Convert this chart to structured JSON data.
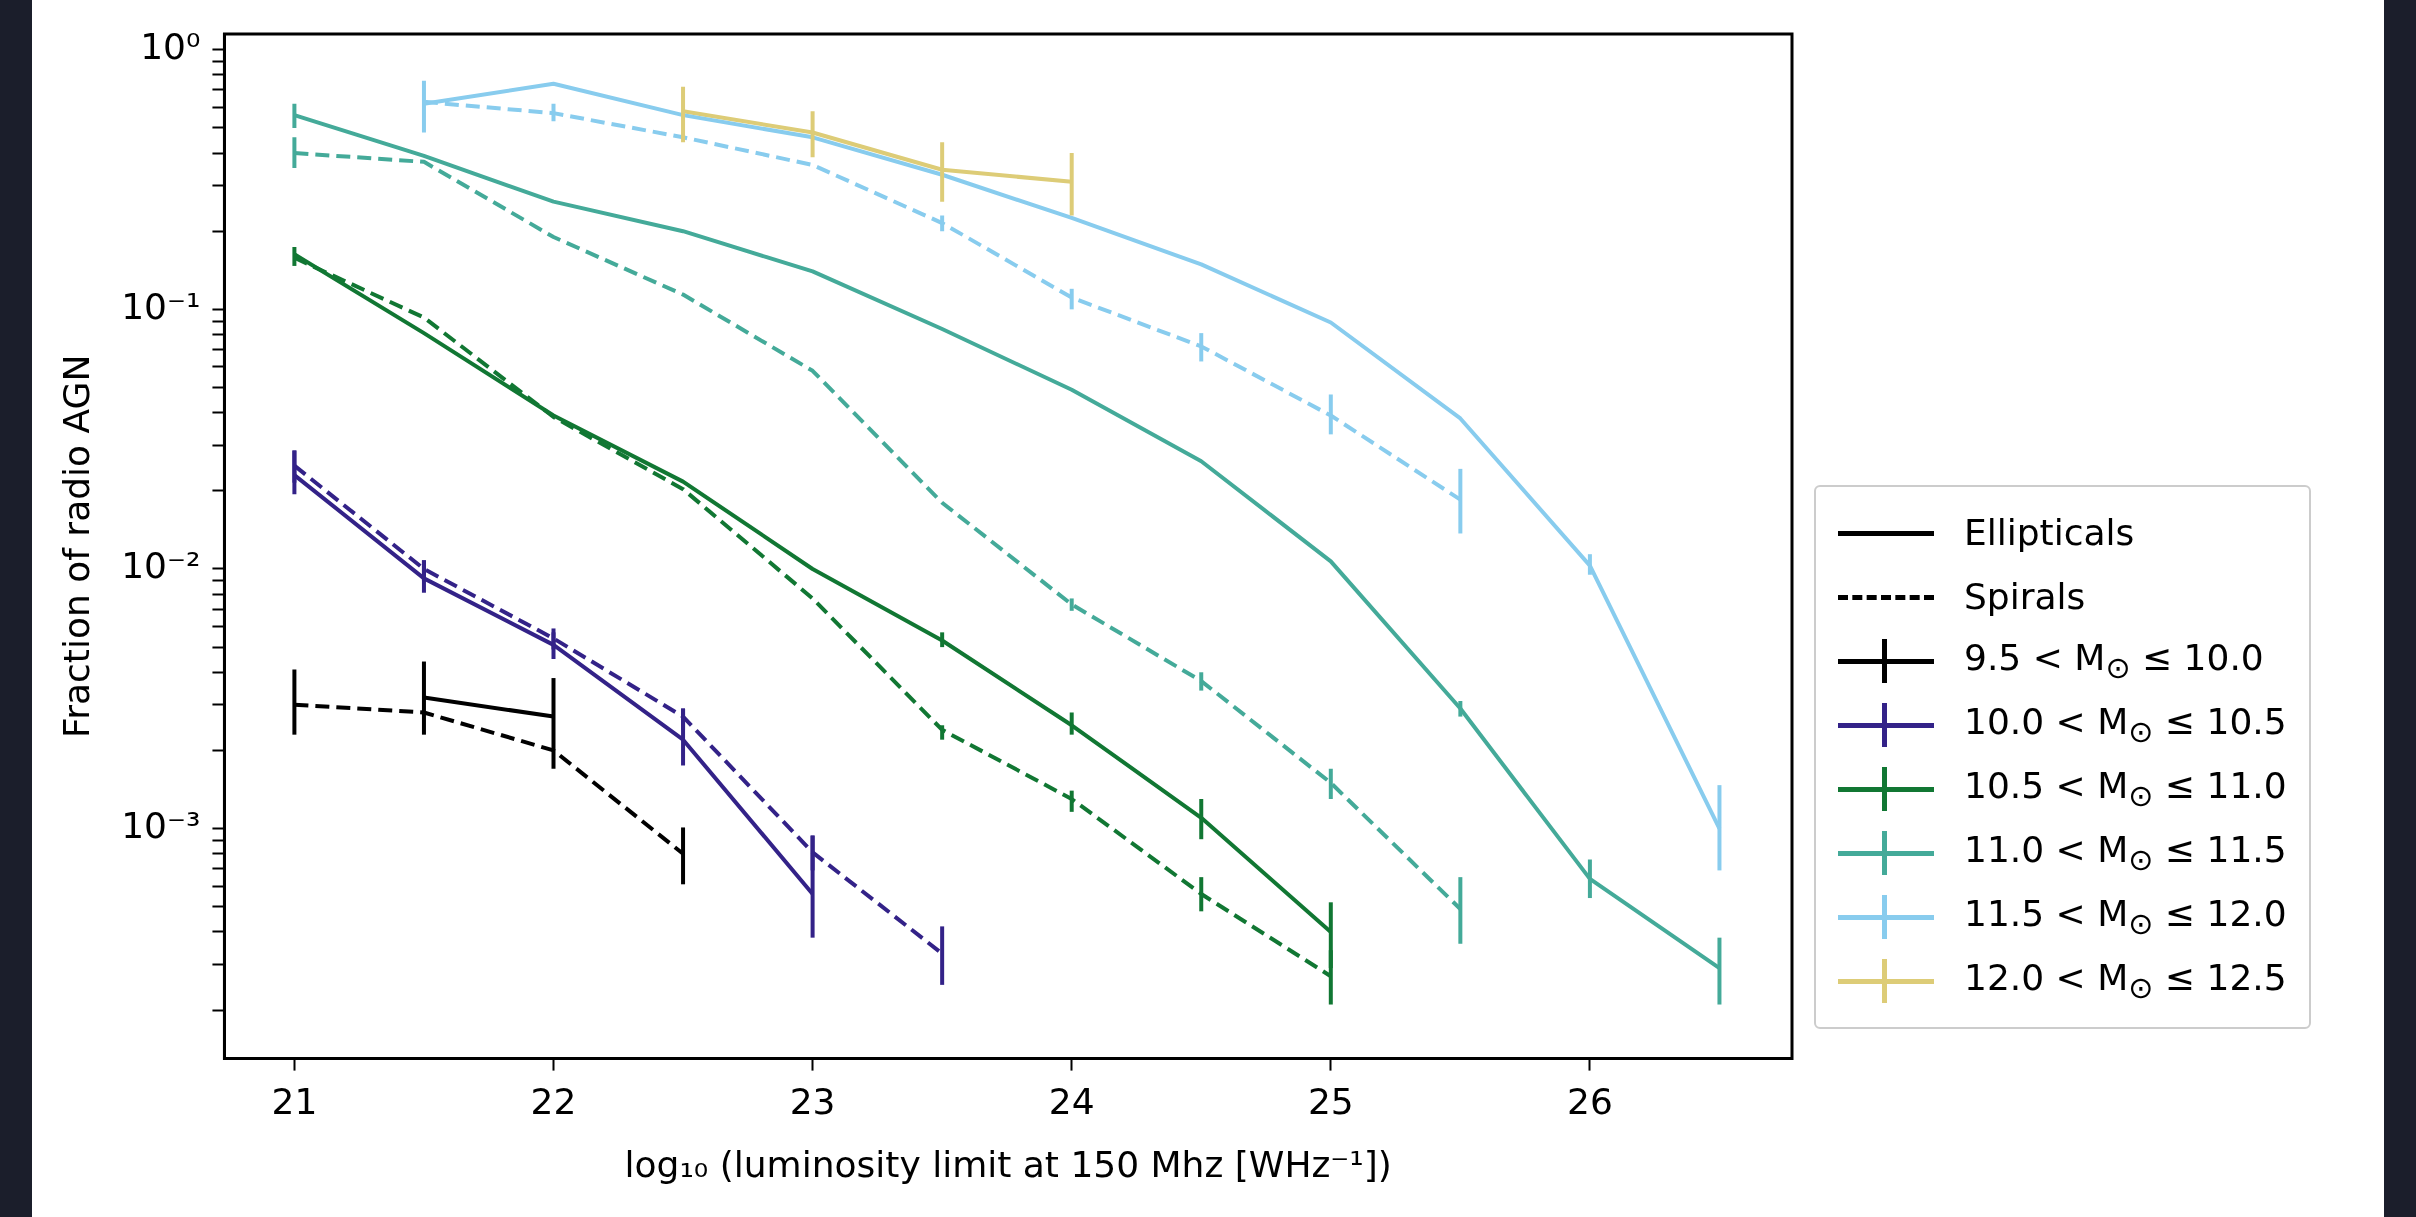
{
  "chart_data": {
    "type": "line",
    "xlabel": "log₁₀ (luminosity limit at 150 Mhz [WHz⁻¹])",
    "ylabel": "Fraction of radio AGN",
    "log": "y",
    "legend": "right",
    "xlim": [
      20.73,
      26.78
    ],
    "ylim": [
      0.00013,
      1.15
    ],
    "xticks": [
      21,
      22,
      23,
      24,
      25,
      26
    ],
    "yticks": [
      {
        "value": 0.001,
        "label": "10⁻³"
      },
      {
        "value": 0.01,
        "label": "10⁻²"
      },
      {
        "value": 0.1,
        "label": "10⁻¹"
      },
      {
        "value": 1,
        "label": "10⁰"
      },
      {
        "value": 0.0002,
        "label": null
      },
      {
        "value": 0.0003,
        "label": null
      },
      {
        "value": 0.0004,
        "label": null
      },
      {
        "value": 0.0005,
        "label": null
      },
      {
        "value": 0.0006,
        "label": null
      },
      {
        "value": 0.0007,
        "label": null
      },
      {
        "value": 0.0008,
        "label": null
      },
      {
        "value": 0.0009,
        "label": null
      },
      {
        "value": 0.002,
        "label": null
      },
      {
        "value": 0.003,
        "label": null
      },
      {
        "value": 0.004,
        "label": null
      },
      {
        "value": 0.005,
        "label": null
      },
      {
        "value": 0.006,
        "label": null
      },
      {
        "value": 0.007,
        "label": null
      },
      {
        "value": 0.008,
        "label": null
      },
      {
        "value": 0.009,
        "label": null
      },
      {
        "value": 0.02,
        "label": null
      },
      {
        "value": 0.03,
        "label": null
      },
      {
        "value": 0.04,
        "label": null
      },
      {
        "value": 0.05,
        "label": null
      },
      {
        "value": 0.06,
        "label": null
      },
      {
        "value": 0.07,
        "label": null
      },
      {
        "value": 0.08,
        "label": null
      },
      {
        "value": 0.09,
        "label": null
      },
      {
        "value": 0.2,
        "label": null
      },
      {
        "value": 0.3,
        "label": null
      },
      {
        "value": 0.4,
        "label": null
      },
      {
        "value": 0.5,
        "label": null
      },
      {
        "value": 0.6,
        "label": null
      },
      {
        "value": 0.7,
        "label": null
      },
      {
        "value": 0.8,
        "label": null
      },
      {
        "value": 0.9,
        "label": null
      }
    ],
    "series": [
      {
        "name": "Ellipticals",
        "color": "#000000",
        "line_style": "solid"
      },
      {
        "name": "Spirals",
        "color": "#000000",
        "line_style": "dashed"
      },
      {
        "name": "9.5 < M$_{⊙}$ ≤ 10.0",
        "color": "#000000",
        "line_style": "solid",
        "x": [
          21.5,
          22
        ],
        "values": [
          0.0032,
          0.0027
        ],
        "errors": [
          [
            0.0023,
            0.0044
          ],
          [
            0.0017,
            0.0038
          ]
        ]
      },
      {
        "color": "#000000",
        "line_style": "dashed",
        "x": [
          21,
          21.5,
          22,
          22.5
        ],
        "values": [
          0.003,
          0.0028,
          0.002,
          0.0008
        ],
        "errors": [
          [
            0.0023,
            0.0041
          ],
          null,
          null,
          [
            0.00061,
            0.00101
          ]
        ]
      },
      {
        "name": "10.0 < M$_{⊙}$ ≤ 10.5",
        "color": "#332288",
        "line_style": "solid",
        "x": [
          21,
          21.5,
          22,
          22.5,
          23
        ],
        "values": [
          0.023,
          0.0092,
          0.0051,
          0.0022,
          0.00056
        ],
        "errors": [
          [
            0.0194,
            0.0286
          ],
          [
            0.0081,
            0.0108
          ],
          [
            0.0045,
            0.0057
          ],
          [
            0.00175,
            0.0029
          ],
          [
            0.00038,
            0.00094
          ]
        ]
      },
      {
        "color": "#332288",
        "line_style": "dashed",
        "x": [
          21,
          21.5,
          22,
          22.5,
          23,
          23.5
        ],
        "values": [
          0.025,
          0.01,
          0.0054,
          0.0027,
          0.00081,
          0.00033
        ],
        "errors": [
          [
            0.0215,
            0.0286
          ],
          [
            0.009,
            0.0108
          ],
          [
            0.0049,
            0.0059
          ],
          [
            0.0024,
            0.0029
          ],
          [
            0.00069,
            0.00094
          ],
          [
            0.00025,
            0.00042
          ]
        ]
      },
      {
        "name": "10.5 < M$_{⊙}$ ≤ 11.0",
        "color": "#117733",
        "line_style": "solid",
        "x": [
          21,
          21.5,
          22,
          22.5,
          23,
          23.5,
          24,
          24.5,
          25
        ],
        "values": [
          0.163,
          0.081,
          0.039,
          0.0217,
          0.01,
          0.0053,
          0.0025,
          0.0011,
          0.0004
        ],
        "errors": [
          [
            0.147,
            0.174
          ],
          null,
          null,
          null,
          null,
          [
            0.005,
            0.0057
          ],
          [
            0.0023,
            0.0028
          ],
          [
            0.00091,
            0.0013
          ],
          [
            0.00029,
            0.00052
          ]
        ]
      },
      {
        "color": "#117733",
        "line_style": "dashed",
        "x": [
          21,
          21.5,
          22,
          22.5,
          23,
          23.5,
          24,
          24.5,
          25
        ],
        "values": [
          0.158,
          0.093,
          0.0385,
          0.0203,
          0.0077,
          0.0024,
          0.0013,
          0.00056,
          0.00027
        ],
        "errors": [
          null,
          null,
          null,
          null,
          null,
          [
            0.0022,
            0.0025
          ],
          [
            0.00116,
            0.0014
          ],
          [
            0.00048,
            0.00065
          ],
          [
            0.00021,
            0.00034
          ]
        ]
      },
      {
        "name": "11.0 < M$_{⊙}$ ≤ 11.5",
        "color": "#44aa99",
        "line_style": "solid",
        "x": [
          21,
          21.5,
          22,
          22.5,
          23,
          23.5,
          24,
          24.5,
          25,
          25.5,
          26,
          26.5
        ],
        "values": [
          0.56,
          0.39,
          0.26,
          0.2,
          0.14,
          0.084,
          0.049,
          0.026,
          0.0107,
          0.0029,
          0.00064,
          0.00029
        ],
        "errors": [
          [
            0.5,
            0.62
          ],
          null,
          null,
          null,
          null,
          null,
          null,
          null,
          null,
          [
            0.0027,
            0.0031
          ],
          [
            0.00054,
            0.00076
          ],
          [
            0.00021,
            0.00038
          ]
        ]
      },
      {
        "color": "#44aa99",
        "line_style": "dashed",
        "x": [
          21,
          21.5,
          22,
          22.5,
          23,
          23.5,
          24,
          24.5,
          25,
          25.5
        ],
        "values": [
          0.4,
          0.37,
          0.19,
          0.114,
          0.058,
          0.018,
          0.0073,
          0.0037,
          0.0015,
          0.00049
        ],
        "errors": [
          [
            0.35,
            0.46
          ],
          null,
          null,
          null,
          null,
          null,
          [
            0.0069,
            0.0077
          ],
          [
            0.0034,
            0.004
          ],
          [
            0.0013,
            0.0017
          ],
          [
            0.00036,
            0.00065
          ]
        ]
      },
      {
        "name": "11.5 < M$_{⊙}$ ≤ 12.0",
        "color": "#88ccee",
        "line_style": "solid",
        "x": [
          21.5,
          22,
          22.5,
          23,
          23.5,
          24,
          24.5,
          25,
          25.5,
          26,
          26.5
        ],
        "values": [
          0.62,
          0.74,
          0.56,
          0.46,
          0.33,
          0.225,
          0.149,
          0.089,
          0.038,
          0.0103,
          0.001
        ],
        "errors": [
          null,
          null,
          null,
          null,
          null,
          null,
          null,
          null,
          null,
          [
            0.0095,
            0.0114
          ],
          [
            0.00069,
            0.00147
          ]
        ]
      },
      {
        "color": "#88ccee",
        "line_style": "dashed",
        "x": [
          21.5,
          22,
          22.5,
          23,
          23.5,
          24,
          24.5,
          25,
          25.5
        ],
        "values": [
          0.63,
          0.57,
          0.46,
          0.36,
          0.215,
          0.111,
          0.072,
          0.039,
          0.0185
        ],
        "errors": [
          [
            0.48,
            0.76
          ],
          [
            0.53,
            0.62
          ],
          null,
          null,
          [
            0.2,
            0.23
          ],
          [
            0.1,
            0.12
          ],
          [
            0.063,
            0.081
          ],
          [
            0.033,
            0.047
          ],
          [
            0.0137,
            0.0243
          ]
        ]
      },
      {
        "name": "12.0 < M$_{⊙}$ ≤ 12.5",
        "color": "#ddcc77",
        "line_style": "solid",
        "x": [
          22.5,
          23,
          23.5,
          24
        ],
        "values": [
          0.58,
          0.48,
          0.345,
          0.31
        ],
        "errors": [
          [
            0.44,
            0.72
          ],
          [
            0.385,
            0.58
          ],
          [
            0.26,
            0.44
          ],
          [
            0.23,
            0.4
          ]
        ]
      }
    ]
  }
}
